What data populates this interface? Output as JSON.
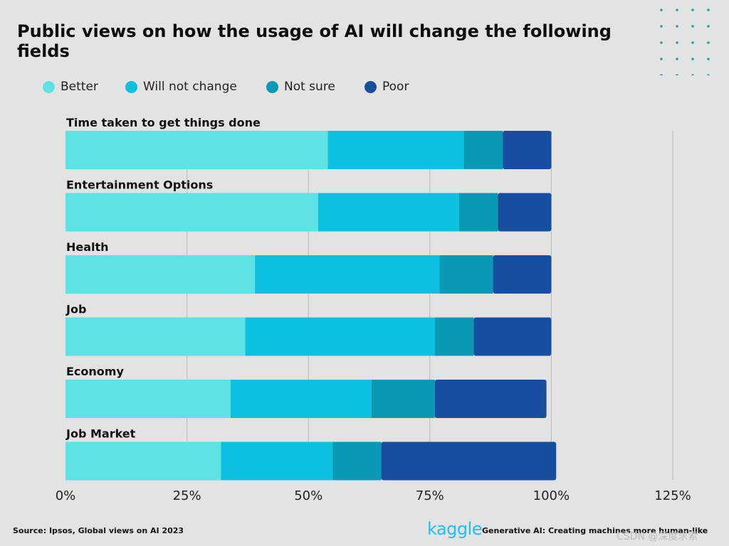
{
  "header": {
    "title": "Public views on how the usage of AI will change the following fields"
  },
  "colors": {
    "background": "#e3e3e3",
    "dots": "#1f9fb8",
    "better": "#5ee2e6",
    "will_not_change": "#0cc0e0",
    "not_sure": "#0899b4",
    "poor": "#174ea0"
  },
  "chart_data": {
    "type": "bar",
    "orientation": "horizontal",
    "stacked": true,
    "categories": [
      "Time taken to get things done",
      "Entertainment Options",
      "Health",
      "Job",
      "Economy",
      "Job Market"
    ],
    "series": [
      {
        "name": "Better",
        "values": [
          54,
          52,
          39,
          37,
          34,
          32
        ]
      },
      {
        "name": "Will not change",
        "values": [
          28,
          29,
          38,
          39,
          29,
          23
        ]
      },
      {
        "name": "Not sure",
        "values": [
          8,
          8,
          11,
          8,
          13,
          10
        ]
      },
      {
        "name": "Poor",
        "values": [
          10,
          11,
          12,
          16,
          23,
          36
        ]
      }
    ],
    "xlim": [
      0,
      125
    ],
    "xticks": [
      0,
      25,
      50,
      75,
      100,
      125
    ],
    "tick_labels": [
      "0%",
      "25%",
      "50%",
      "75%",
      "100%",
      "125%"
    ],
    "grid": true,
    "legend_position": "top-left"
  },
  "footer": {
    "source": "Source: Ipsos, Global views on AI 2023",
    "logo": "kaggle",
    "tagline": "Generative AI: Creating machines more human-like",
    "watermark": "CSDN @深度求索"
  }
}
